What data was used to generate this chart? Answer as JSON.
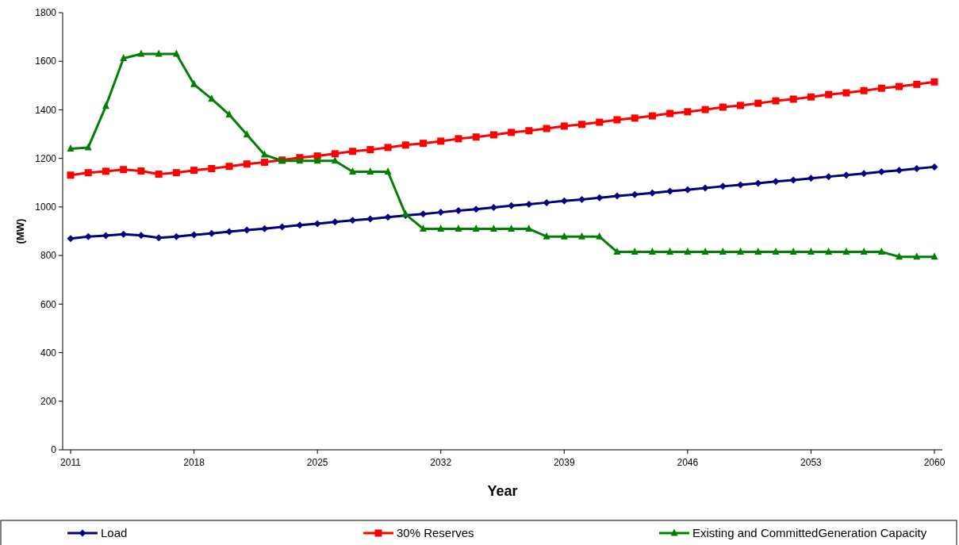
{
  "chart_data": {
    "type": "line",
    "xlabel": "Year",
    "ylabel": "(MW)",
    "x": [
      2011,
      2012,
      2013,
      2014,
      2015,
      2016,
      2017,
      2018,
      2019,
      2020,
      2021,
      2022,
      2023,
      2024,
      2025,
      2026,
      2027,
      2028,
      2029,
      2030,
      2031,
      2032,
      2033,
      2034,
      2035,
      2036,
      2037,
      2038,
      2039,
      2040,
      2041,
      2042,
      2043,
      2044,
      2045,
      2046,
      2047,
      2048,
      2049,
      2050,
      2051,
      2052,
      2053,
      2054,
      2055,
      2056,
      2057,
      2058,
      2059,
      2060
    ],
    "series": [
      {
        "name": "Load",
        "color": "#000080",
        "marker": "diamond",
        "values": [
          870,
          878,
          882,
          888,
          883,
          873,
          878,
          885,
          891,
          898,
          905,
          911,
          918,
          925,
          931,
          938,
          945,
          951,
          958,
          965,
          971,
          978,
          985,
          991,
          998,
          1005,
          1011,
          1018,
          1025,
          1031,
          1038,
          1045,
          1051,
          1058,
          1065,
          1071,
          1078,
          1085,
          1091,
          1098,
          1105,
          1111,
          1118,
          1125,
          1131,
          1138,
          1145,
          1151,
          1158,
          1165
        ]
      },
      {
        "name": "30% Reserves",
        "color": "#ff0000",
        "marker": "square",
        "values": [
          1131,
          1141,
          1147,
          1154,
          1148,
          1135,
          1141,
          1151,
          1158,
          1167,
          1177,
          1184,
          1193,
          1203,
          1210,
          1219,
          1229,
          1236,
          1245,
          1255,
          1262,
          1271,
          1281,
          1288,
          1297,
          1307,
          1314,
          1323,
          1333,
          1340,
          1349,
          1359,
          1366,
          1375,
          1385,
          1392,
          1401,
          1411,
          1418,
          1427,
          1437,
          1444,
          1453,
          1463,
          1470,
          1479,
          1489,
          1496,
          1505,
          1515
        ]
      },
      {
        "name": "Existing and CommittedGeneration Capacity",
        "color": "#008000",
        "marker": "triangle",
        "values": [
          1240,
          1245,
          1415,
          1612,
          1630,
          1630,
          1630,
          1505,
          1445,
          1380,
          1298,
          1215,
          1190,
          1190,
          1190,
          1190,
          1145,
          1145,
          1145,
          970,
          910,
          910,
          910,
          910,
          910,
          910,
          910,
          878,
          878,
          878,
          878,
          815,
          815,
          815,
          815,
          815,
          815,
          815,
          815,
          815,
          815,
          815,
          815,
          815,
          815,
          815,
          815,
          795,
          795,
          795
        ]
      }
    ],
    "xlim": [
      2010.55,
      2060.45
    ],
    "xticks": [
      2011,
      2018,
      2025,
      2032,
      2039,
      2046,
      2053,
      2060
    ],
    "ylim": [
      0,
      1800
    ],
    "yticks": [
      0,
      200,
      400,
      600,
      800,
      1000,
      1200,
      1400,
      1600,
      1800
    ],
    "legend": "bottom",
    "line_style": "solid"
  }
}
